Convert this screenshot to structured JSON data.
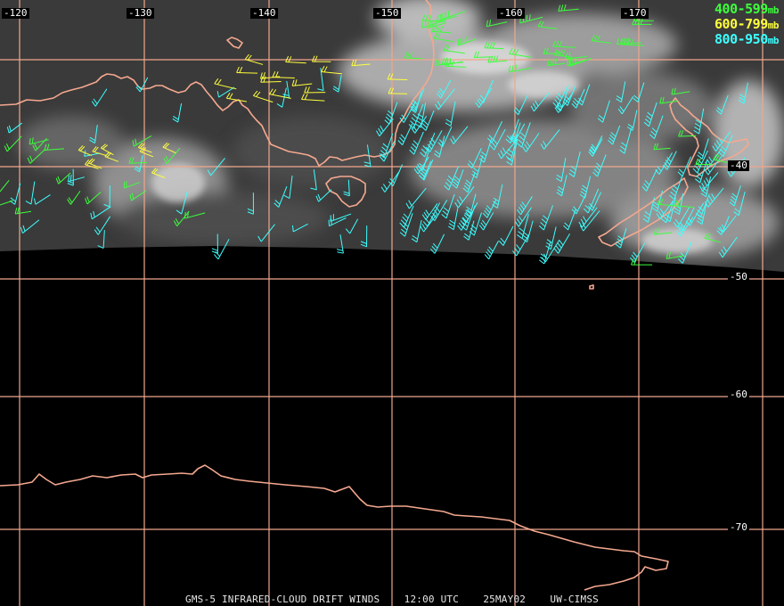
{
  "map": {
    "longitude_labels": [
      "-120",
      "-130",
      "-140",
      "-150",
      "-160",
      "-170"
    ],
    "latitude_labels": [
      "-40",
      "-50",
      "-60",
      "-70"
    ],
    "legend": [
      {
        "range": "400-599",
        "unit": "mb",
        "color": "#3dff3d"
      },
      {
        "range": "600-799",
        "unit": "mb",
        "color": "#ffff3d"
      },
      {
        "range": "800-950",
        "unit": "mb",
        "color": "#3dffff"
      }
    ],
    "caption": "GMS-5 INFRARED-CLOUD DRIFT WINDS    12:00 UTC    25MAY02    UW-CIMSS",
    "colors": {
      "grid": "#f0a78e",
      "coastline": "#f5a890",
      "background": "#000000",
      "cloud_gray": "#8a8a8a"
    }
  }
}
